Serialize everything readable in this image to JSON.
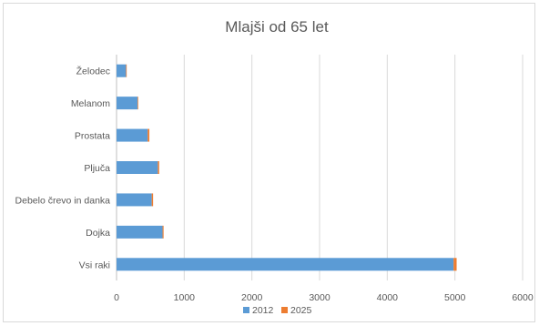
{
  "chart_data": {
    "type": "bar",
    "orientation": "horizontal",
    "stacked": true,
    "title": "Mlajši od 65 let",
    "categories": [
      "Želodec",
      "Melanom",
      "Prostata",
      "Pljuča",
      "Debelo črevo in danka",
      "Dojka",
      "Vsi raki"
    ],
    "series": [
      {
        "name": "2012",
        "color": "#5B9BD5",
        "values": [
          140,
          310,
          460,
          610,
          520,
          680,
          4980
        ]
      },
      {
        "name": "2025",
        "color": "#ED7D31",
        "values": [
          10,
          10,
          25,
          20,
          20,
          15,
          45
        ]
      }
    ],
    "xlim": [
      0,
      6000
    ],
    "xticks": [
      0,
      1000,
      2000,
      3000,
      4000,
      5000,
      6000
    ],
    "grid": true,
    "legend": "bottom"
  }
}
